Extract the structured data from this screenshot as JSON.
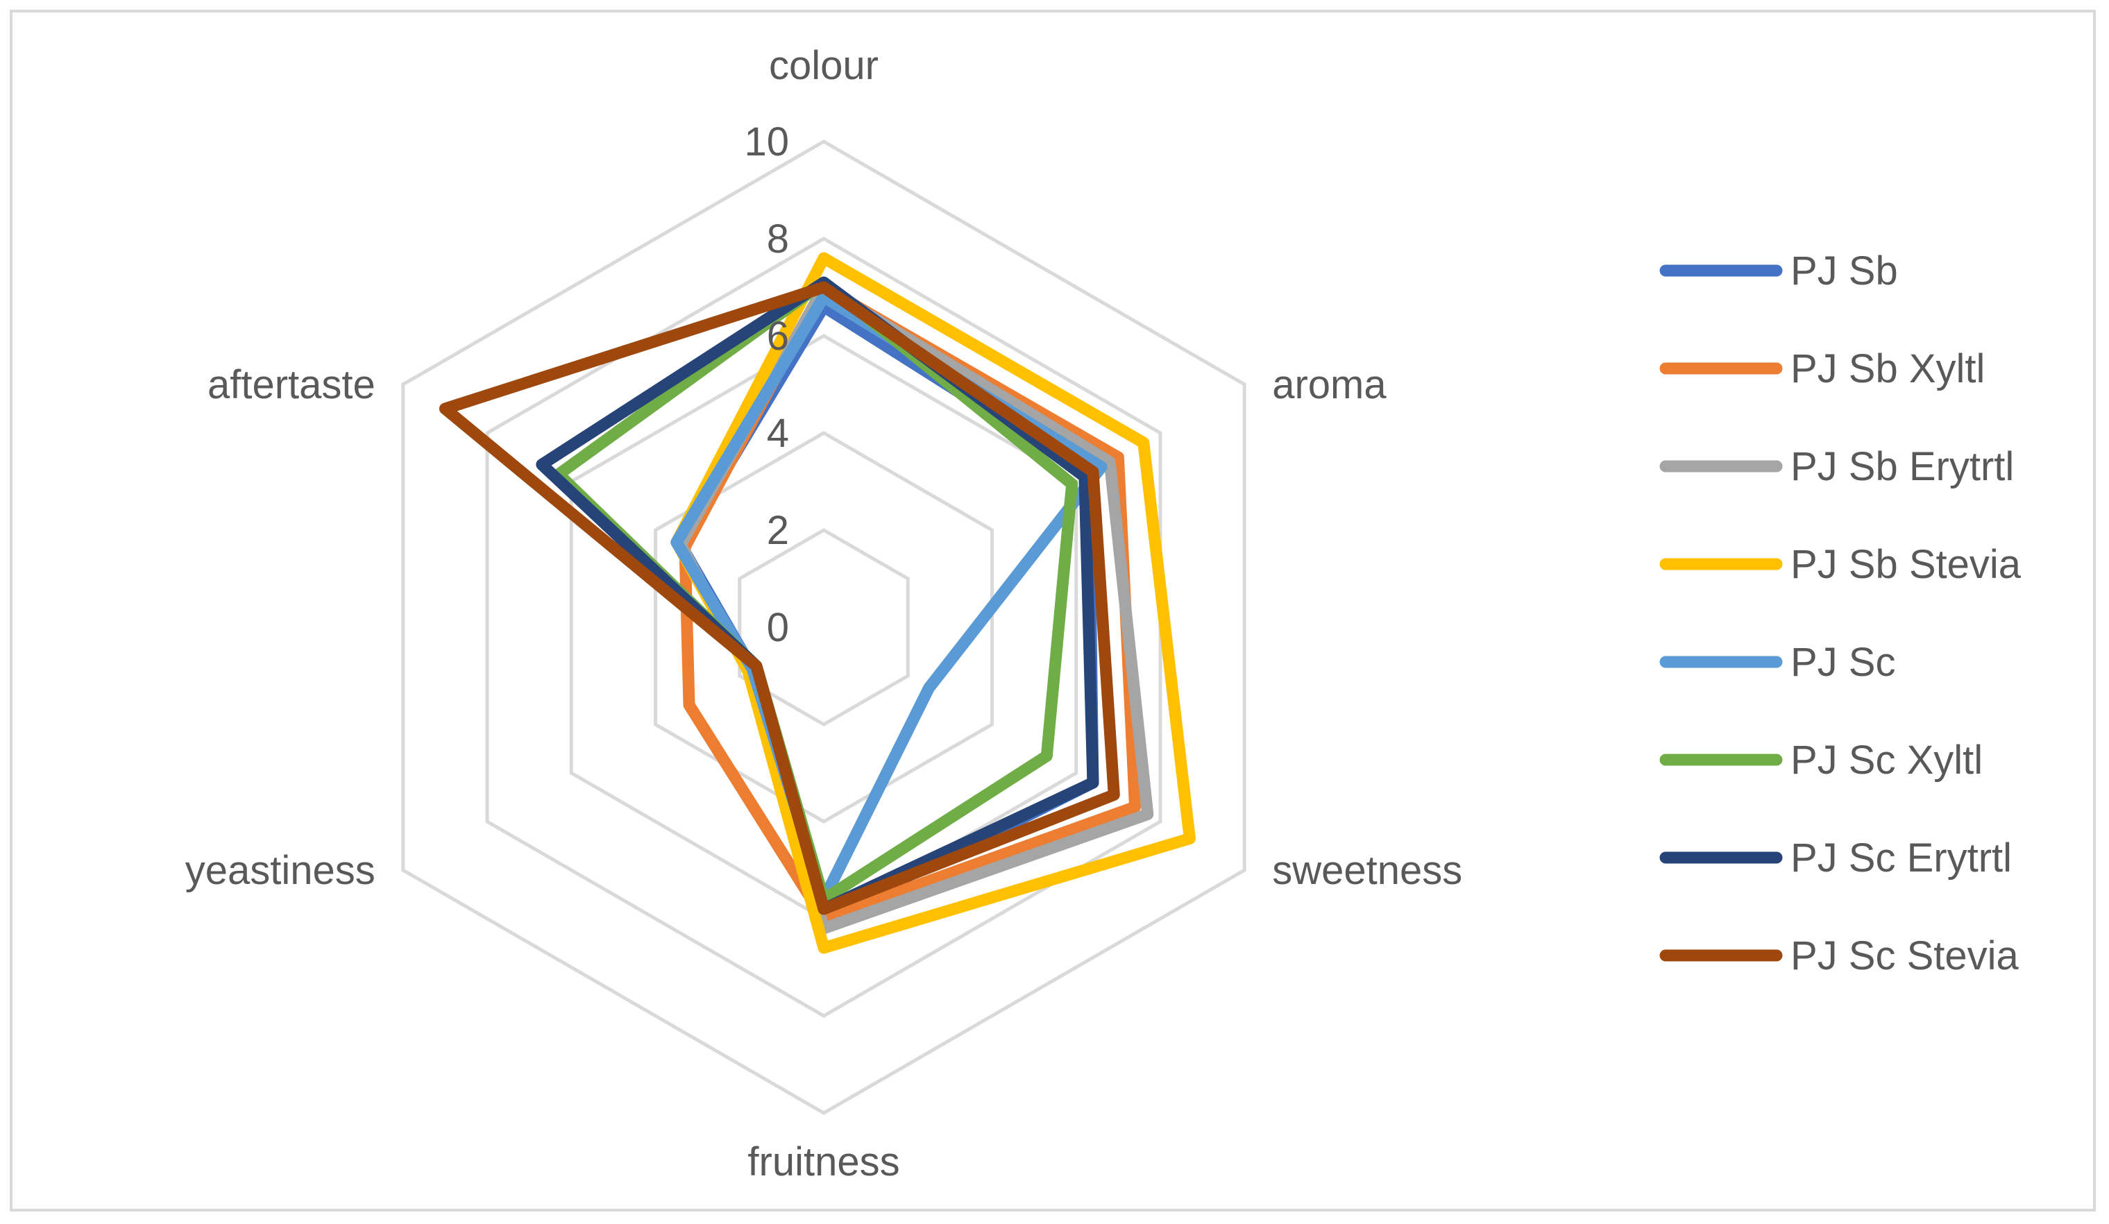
{
  "chart_data": {
    "type": "radar",
    "axes": [
      "colour",
      "aroma",
      "sweetness",
      "fruitness",
      "yeastiness",
      "aftertaste"
    ],
    "rlim": [
      0,
      10
    ],
    "ticks": [
      "0",
      "2",
      "4",
      "6",
      "8",
      "10"
    ],
    "grid": true,
    "legend_position": "right",
    "series": [
      {
        "name": "PJ Sb",
        "color": "#4472C4",
        "values": [
          6.6,
          6.3,
          6.4,
          6.0,
          1.7,
          3.4
        ]
      },
      {
        "name": "PJ Sb Xyltl",
        "color": "#ED7D31",
        "values": [
          7.0,
          7.0,
          7.4,
          6.0,
          3.2,
          3.3
        ]
      },
      {
        "name": "PJ Sb Erytrtl",
        "color": "#A5A5A5",
        "values": [
          7.0,
          6.8,
          7.7,
          6.2,
          1.8,
          3.4
        ]
      },
      {
        "name": "PJ Sb Stevia",
        "color": "#FFC000",
        "values": [
          7.6,
          7.6,
          8.7,
          6.6,
          1.8,
          3.5
        ]
      },
      {
        "name": "PJ Sc",
        "color": "#5B9BD5",
        "values": [
          6.8,
          6.6,
          2.5,
          5.6,
          1.7,
          3.5
        ]
      },
      {
        "name": "PJ Sc Xyltl",
        "color": "#70AD47",
        "values": [
          7.1,
          5.9,
          5.3,
          5.6,
          1.6,
          6.3
        ]
      },
      {
        "name": "PJ Sc Erytrtl",
        "color": "#264478",
        "values": [
          7.1,
          6.2,
          6.4,
          5.8,
          1.6,
          6.7
        ]
      },
      {
        "name": "PJ Sc Stevia",
        "color": "#9E480E",
        "values": [
          7.0,
          6.4,
          6.9,
          5.8,
          1.6,
          9.0
        ]
      }
    ]
  }
}
